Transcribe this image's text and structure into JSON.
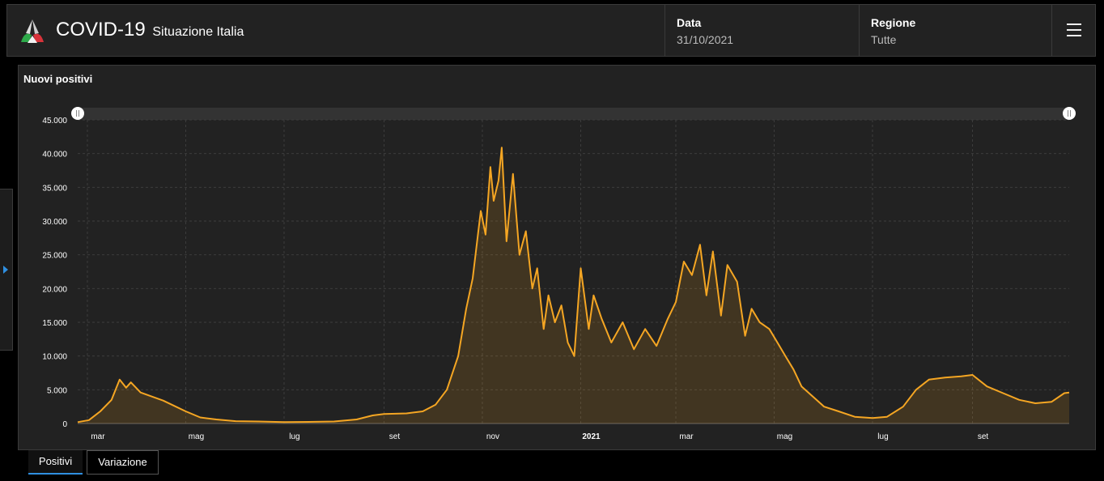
{
  "header": {
    "title": "COVID-19",
    "subtitle": "Situazione Italia",
    "date_label": "Data",
    "date_value": "31/10/2021",
    "region_label": "Regione",
    "region_value": "Tutte",
    "menu_icon": "hamburger-icon"
  },
  "panel": {
    "title": "Nuovi positivi"
  },
  "tabs": [
    {
      "label": "Positivi",
      "active": true
    },
    {
      "label": "Variazione",
      "active": false
    }
  ],
  "colors": {
    "line": "#f5a623",
    "accent": "#2f8fe0",
    "background": "#222222"
  },
  "chart_data": {
    "type": "area",
    "title": "Nuovi positivi",
    "x_range": [
      "2020-02-24",
      "2021-10-31"
    ],
    "ylim": [
      0,
      45000
    ],
    "y_ticks": [
      0,
      5000,
      10000,
      15000,
      20000,
      25000,
      30000,
      35000,
      40000,
      45000
    ],
    "y_tick_labels": [
      "0",
      "5.000",
      "10.000",
      "15.000",
      "20.000",
      "25.000",
      "30.000",
      "35.000",
      "40.000",
      "45.000"
    ],
    "x_ticks": [
      {
        "date": "2020-03-01",
        "label": "mar"
      },
      {
        "date": "2020-05-01",
        "label": "mag"
      },
      {
        "date": "2020-07-01",
        "label": "lug"
      },
      {
        "date": "2020-09-01",
        "label": "set"
      },
      {
        "date": "2020-11-01",
        "label": "nov"
      },
      {
        "date": "2021-01-01",
        "label": "2021"
      },
      {
        "date": "2021-03-01",
        "label": "mar"
      },
      {
        "date": "2021-05-01",
        "label": "mag"
      },
      {
        "date": "2021-07-01",
        "label": "lug"
      },
      {
        "date": "2021-09-01",
        "label": "set"
      }
    ],
    "grid": true,
    "series": [
      {
        "values": [
          [
            "2020-02-24",
            200
          ],
          [
            "2020-03-02",
            500
          ],
          [
            "2020-03-09",
            1800
          ],
          [
            "2020-03-16",
            3500
          ],
          [
            "2020-03-21",
            6500
          ],
          [
            "2020-03-25",
            5300
          ],
          [
            "2020-03-28",
            6100
          ],
          [
            "2020-04-03",
            4600
          ],
          [
            "2020-04-10",
            4000
          ],
          [
            "2020-04-17",
            3400
          ],
          [
            "2020-04-24",
            2600
          ],
          [
            "2020-05-01",
            1800
          ],
          [
            "2020-05-10",
            900
          ],
          [
            "2020-05-20",
            600
          ],
          [
            "2020-06-01",
            350
          ],
          [
            "2020-06-15",
            300
          ],
          [
            "2020-07-01",
            200
          ],
          [
            "2020-07-20",
            250
          ],
          [
            "2020-08-01",
            300
          ],
          [
            "2020-08-15",
            600
          ],
          [
            "2020-08-25",
            1200
          ],
          [
            "2020-09-01",
            1400
          ],
          [
            "2020-09-15",
            1500
          ],
          [
            "2020-09-25",
            1800
          ],
          [
            "2020-10-03",
            2800
          ],
          [
            "2020-10-10",
            5000
          ],
          [
            "2020-10-17",
            10000
          ],
          [
            "2020-10-22",
            17000
          ],
          [
            "2020-10-26",
            21500
          ],
          [
            "2020-10-31",
            31500
          ],
          [
            "2020-11-03",
            28000
          ],
          [
            "2020-11-06",
            38000
          ],
          [
            "2020-11-08",
            33000
          ],
          [
            "2020-11-11",
            36000
          ],
          [
            "2020-11-13",
            40900
          ],
          [
            "2020-11-16",
            27000
          ],
          [
            "2020-11-20",
            37000
          ],
          [
            "2020-11-24",
            25000
          ],
          [
            "2020-11-28",
            28500
          ],
          [
            "2020-12-02",
            20000
          ],
          [
            "2020-12-05",
            23000
          ],
          [
            "2020-12-09",
            14000
          ],
          [
            "2020-12-12",
            19000
          ],
          [
            "2020-12-16",
            15000
          ],
          [
            "2020-12-20",
            17500
          ],
          [
            "2020-12-24",
            12000
          ],
          [
            "2020-12-28",
            10000
          ],
          [
            "2021-01-01",
            23000
          ],
          [
            "2021-01-06",
            14000
          ],
          [
            "2021-01-09",
            19000
          ],
          [
            "2021-01-14",
            15500
          ],
          [
            "2021-01-20",
            12000
          ],
          [
            "2021-01-27",
            15000
          ],
          [
            "2021-02-03",
            11000
          ],
          [
            "2021-02-10",
            14000
          ],
          [
            "2021-02-17",
            11500
          ],
          [
            "2021-02-24",
            15500
          ],
          [
            "2021-03-01",
            18000
          ],
          [
            "2021-03-06",
            24000
          ],
          [
            "2021-03-11",
            22000
          ],
          [
            "2021-03-16",
            26500
          ],
          [
            "2021-03-20",
            19000
          ],
          [
            "2021-03-24",
            25500
          ],
          [
            "2021-03-29",
            16000
          ],
          [
            "2021-04-02",
            23500
          ],
          [
            "2021-04-08",
            21000
          ],
          [
            "2021-04-13",
            13000
          ],
          [
            "2021-04-17",
            17000
          ],
          [
            "2021-04-22",
            15000
          ],
          [
            "2021-04-28",
            14000
          ],
          [
            "2021-05-03",
            12000
          ],
          [
            "2021-05-08",
            10000
          ],
          [
            "2021-05-13",
            8000
          ],
          [
            "2021-05-18",
            5500
          ],
          [
            "2021-05-25",
            4000
          ],
          [
            "2021-06-01",
            2500
          ],
          [
            "2021-06-10",
            1800
          ],
          [
            "2021-06-20",
            1000
          ],
          [
            "2021-07-01",
            800
          ],
          [
            "2021-07-10",
            1000
          ],
          [
            "2021-07-20",
            2500
          ],
          [
            "2021-07-28",
            5000
          ],
          [
            "2021-08-05",
            6500
          ],
          [
            "2021-08-15",
            6800
          ],
          [
            "2021-08-25",
            7000
          ],
          [
            "2021-09-01",
            7200
          ],
          [
            "2021-09-10",
            5500
          ],
          [
            "2021-09-20",
            4500
          ],
          [
            "2021-09-30",
            3500
          ],
          [
            "2021-10-10",
            3000
          ],
          [
            "2021-10-20",
            3200
          ],
          [
            "2021-10-28",
            4500
          ],
          [
            "2021-10-31",
            4600
          ]
        ]
      }
    ]
  }
}
